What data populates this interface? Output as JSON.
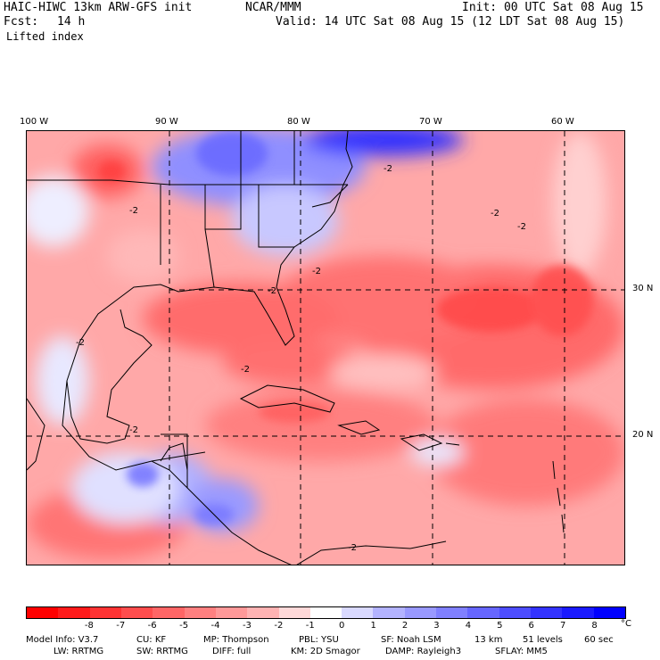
{
  "header": {
    "model": "HAIC-HIWC 13km ARW-GFS init",
    "org": "NCAR/MMM",
    "init": "Init: 00 UTC Sat 08 Aug 15",
    "fcst_label": "Fcst:",
    "fcst_value": "14 h",
    "valid": "Valid: 14 UTC Sat 08 Aug 15 (12 LDT Sat 08 Aug 15)",
    "field": "Lifted index"
  },
  "map": {
    "lon_labels": [
      "100 W",
      "90 W",
      "80 W",
      "70 W",
      "60 W"
    ],
    "lat_labels": [
      "30 N",
      "20 N"
    ],
    "contour_label": "-2"
  },
  "colorbar": {
    "labels": [
      "-8",
      "-7",
      "-6",
      "-5",
      "-4",
      "-3",
      "-2",
      "-1",
      "0",
      "1",
      "2",
      "3",
      "4",
      "5",
      "6",
      "7",
      "8"
    ],
    "unit": "°C",
    "colors": [
      "#ff0000",
      "#ff1a1a",
      "#ff3333",
      "#ff4d4d",
      "#ff6666",
      "#ff8080",
      "#ff9999",
      "#ffb3b3",
      "#ffd9d9",
      "#ffffff",
      "#d9d9ff",
      "#b3b3ff",
      "#9999ff",
      "#8080ff",
      "#6666ff",
      "#4d4dff",
      "#3333ff",
      "#1a1aff",
      "#0000ff"
    ]
  },
  "model_info": {
    "line1": [
      "Model Info: V3.7",
      "CU: KF",
      "MP: Thompson",
      "PBL: YSU",
      "SF: Noah LSM",
      "13 km",
      "51 levels",
      "60 sec"
    ],
    "line2": [
      "LW: RRTMG",
      "SW: RRTMG",
      "DIFF: full",
      "KM: 2D Smagor",
      "DAMP: Rayleigh3",
      "SFLAY: MM5"
    ]
  }
}
